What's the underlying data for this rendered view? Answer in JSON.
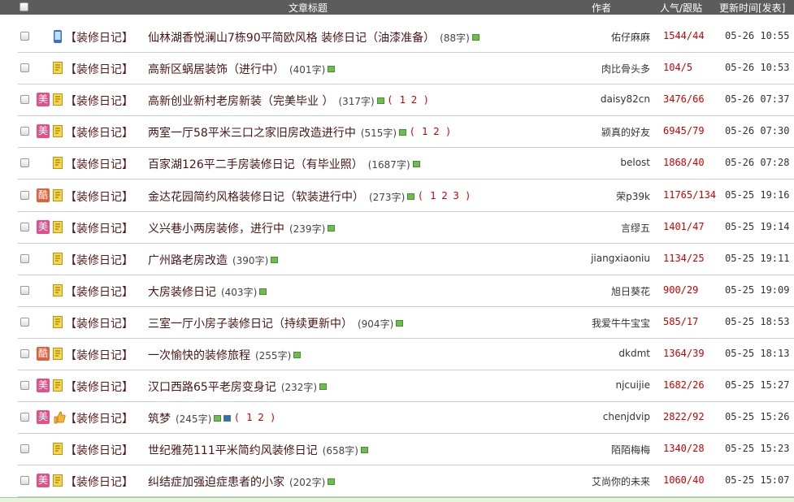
{
  "header": {
    "title": "文章标题",
    "author": "作者",
    "stats": "人气/跟贴",
    "time": "更新时间[发表]"
  },
  "rows": [
    {
      "badge": null,
      "category": "【装修日记】",
      "title": "仙林湖香悦澜山7栋90平简欧风格 装修日记（油漆准备）",
      "length": "(88字)",
      "pages": [],
      "author": "佑仔麻麻",
      "stats": "1544/44",
      "time": "05-26 10:55"
    },
    {
      "badge": null,
      "category": "【装修日记】",
      "title": "高新区蜗居装饰（进行中）",
      "length": "(401字)",
      "pages": [],
      "author": "肉比骨头多",
      "stats": "104/5",
      "time": "05-26 10:53"
    },
    {
      "badge": "美",
      "category": "【装修日记】",
      "title": "高新创业新村老房新装（完美毕业 ）",
      "length": "(317字)",
      "pages": [
        "1",
        "2"
      ],
      "author": "daisy82cn",
      "stats": "3476/66",
      "time": "05-26 07:37"
    },
    {
      "badge": "美",
      "category": "【装修日记】",
      "title": "两室一厅58平米三口之家旧房改造进行中",
      "length": "(515字)",
      "pages": [
        "1",
        "2"
      ],
      "author": "颍真的好友",
      "stats": "6945/79",
      "time": "05-26 07:30"
    },
    {
      "badge": null,
      "category": "【装修日记】",
      "title": "百家湖126平二手房装修日记（有毕业照）",
      "length": "(1687字)",
      "pages": [],
      "author": "belost",
      "stats": "1868/40",
      "time": "05-26 07:28"
    },
    {
      "badge": "酷",
      "category": "【装修日记】",
      "title": "金达花园简约风格装修日记（软装进行中）",
      "length": "(273字)",
      "pages": [
        "1",
        "2",
        "3"
      ],
      "author": "荣p39k",
      "stats": "11765/134",
      "time": "05-25 19:16"
    },
    {
      "badge": "美",
      "category": "【装修日记】",
      "title": "义兴巷小两房装修，进行中",
      "length": "(239字)",
      "pages": [],
      "author": "言缪五",
      "stats": "1401/47",
      "time": "05-25 19:14"
    },
    {
      "badge": null,
      "category": "【装修日记】",
      "title": "广州路老房改造",
      "length": "(390字)",
      "pages": [],
      "author": "jiangxiaoniu",
      "stats": "1134/25",
      "time": "05-25 19:11"
    },
    {
      "badge": null,
      "category": "【装修日记】",
      "title": "大房装修日记",
      "length": "(403字)",
      "pages": [],
      "author": "旭日葵花",
      "stats": "900/29",
      "time": "05-25 19:09"
    },
    {
      "badge": null,
      "category": "【装修日记】",
      "title": "三室一厅小房子装修日记（持续更新中）",
      "length": "(904字)",
      "pages": [],
      "author": "我爱牛牛宝宝",
      "stats": "585/17",
      "time": "05-25 18:53"
    },
    {
      "badge": "酷",
      "category": "【装修日记】",
      "title": "一次愉快的装修旅程",
      "length": "(255字)",
      "pages": [],
      "author": "dkdmt",
      "stats": "1364/39",
      "time": "05-25 18:13"
    },
    {
      "badge": "美",
      "category": "【装修日记】",
      "title": "汉口西路65平老房变身记",
      "length": "(232字)",
      "pages": [],
      "author": "njcuijie",
      "stats": "1682/26",
      "time": "05-25 15:27"
    },
    {
      "badge": "美",
      "category": "【装修日记】",
      "title": "筑梦",
      "length": "(245字)",
      "pages": [
        "1",
        "2"
      ],
      "author": "chenjdvip",
      "stats": "2822/92",
      "time": "05-25 15:26"
    },
    {
      "badge": null,
      "category": "【装修日记】",
      "title": "世纪雅苑111平米简约风装修日记",
      "length": "(658字)",
      "pages": [],
      "author": "陌陌梅梅",
      "stats": "1340/28",
      "time": "05-25 15:23"
    },
    {
      "badge": "美",
      "category": "【装修日记】",
      "title": "纠结症加强迫症患者的小家",
      "length": "(202字)",
      "pages": [],
      "author": "艾尚你的未来",
      "stats": "1060/40",
      "time": "05-25 15:07"
    }
  ]
}
